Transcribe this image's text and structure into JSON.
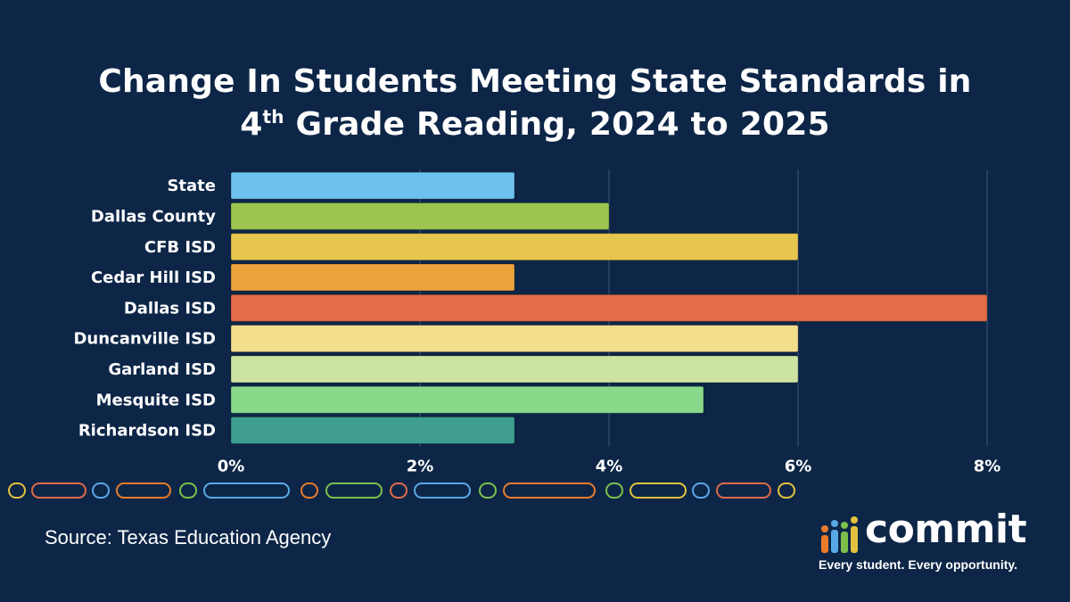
{
  "title_main": "Change In Students Meeting State Standards in",
  "title_line2_prefix": "4",
  "title_line2_sup": "th",
  "title_line2_rest": " Grade Reading, 2024 to 2025",
  "source": "Source: Texas Education Agency",
  "logo": {
    "word": "commit",
    "tagline": "Every student. Every opportunity.",
    "bar_colors": [
      "#e97b2b",
      "#5aa9e6",
      "#7cc04b",
      "#e2c23d"
    ]
  },
  "decor_colors": [
    "#e2c23d",
    "#e06a4a",
    "#5aa9e6",
    "#e97b2b",
    "#7cc04b"
  ],
  "chart_data": {
    "type": "bar",
    "orientation": "horizontal",
    "categories": [
      "State",
      "Dallas County",
      "CFB ISD",
      "Cedar Hill ISD",
      "Dallas ISD",
      "Duncanville ISD",
      "Garland ISD",
      "Mesquite ISD",
      "Richardson ISD"
    ],
    "values": [
      3,
      4,
      6,
      3,
      8,
      6,
      6,
      5,
      3
    ],
    "colors": [
      "#6ec1ed",
      "#9bc54e",
      "#e6c64f",
      "#eba23c",
      "#e46c47",
      "#f3de8c",
      "#cde3a2",
      "#88da8a",
      "#3f9e8f"
    ],
    "xlim": [
      0,
      8
    ],
    "xticks": [
      0,
      2,
      4,
      6,
      8
    ],
    "xtick_labels": [
      "0%",
      "2%",
      "4%",
      "6%",
      "8%"
    ],
    "grid": "vertical"
  }
}
